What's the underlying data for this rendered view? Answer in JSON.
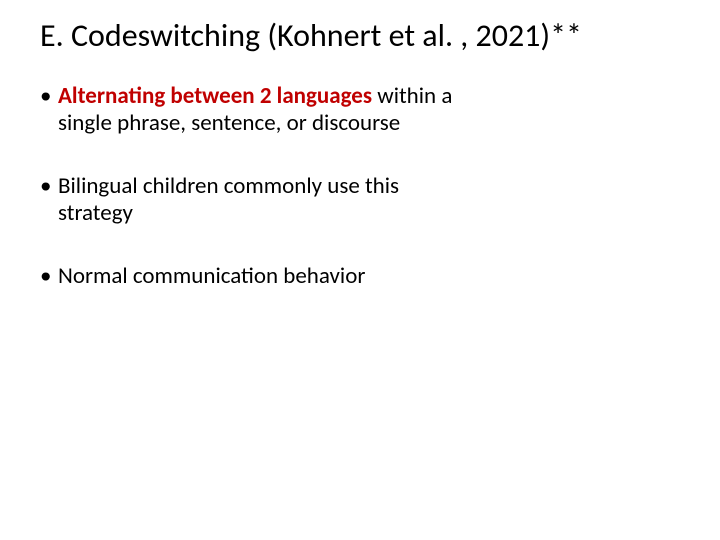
{
  "title": "E. Codeswitching (Kohnert et al. , 2021)**",
  "title_fontsize": 32,
  "title_color": "#000000",
  "bullets": [
    {
      "emphasis": "Alternating between 2 languages ",
      "rest": "within a single phrase, sentence, or discourse"
    },
    {
      "emphasis": "",
      "rest": "Bilingual children commonly use this strategy"
    },
    {
      "emphasis": "",
      "rest": "Normal communication behavior"
    }
  ],
  "emphasis_color": "#c00000",
  "emphasis_weight": 700,
  "body_fontsize": 23,
  "body_color": "#000000",
  "background_color": "#ffffff",
  "slide_width": 720,
  "slide_height": 540
}
